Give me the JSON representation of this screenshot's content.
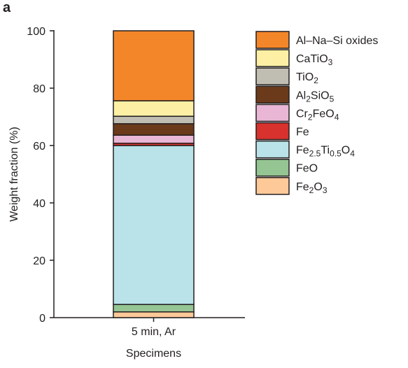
{
  "panel_label": "a",
  "chart_data": {
    "type": "bar",
    "stacked": true,
    "categories": [
      "5 min, Ar"
    ],
    "xlabel": "Specimens",
    "ylabel": "Weight fraction (%)",
    "ylim": [
      0,
      100
    ],
    "yticks": [
      0,
      20,
      40,
      60,
      80,
      100
    ],
    "grid": false,
    "legend_position": "right",
    "series": [
      {
        "name": "Fe2O3",
        "label_parts": [
          [
            "Fe",
            ""
          ],
          [
            "2",
            "sub"
          ],
          [
            "O",
            ""
          ],
          [
            "3",
            "sub"
          ]
        ],
        "color": "#fdc998",
        "values": [
          2.0
        ]
      },
      {
        "name": "FeO",
        "label_parts": [
          [
            "FeO",
            ""
          ]
        ],
        "color": "#94c592",
        "values": [
          2.6
        ]
      },
      {
        "name": "Fe2.5Ti0.5O4",
        "label_parts": [
          [
            "Fe",
            ""
          ],
          [
            "2.5",
            "sub"
          ],
          [
            "Ti",
            ""
          ],
          [
            "0.5",
            "sub"
          ],
          [
            "O",
            ""
          ],
          [
            "4",
            "sub"
          ]
        ],
        "color": "#b9e3e9",
        "values": [
          55.4
        ]
      },
      {
        "name": "Fe",
        "label_parts": [
          [
            "Fe",
            ""
          ]
        ],
        "color": "#d7322e",
        "values": [
          0.8
        ]
      },
      {
        "name": "Cr2FeO4",
        "label_parts": [
          [
            "Cr",
            ""
          ],
          [
            "2",
            "sub"
          ],
          [
            "FeO",
            ""
          ],
          [
            "4",
            "sub"
          ]
        ],
        "color": "#e9b7d5",
        "values": [
          2.8
        ]
      },
      {
        "name": "Al2SiO5",
        "label_parts": [
          [
            "Al",
            ""
          ],
          [
            "2",
            "sub"
          ],
          [
            "SiO",
            ""
          ],
          [
            "5",
            "sub"
          ]
        ],
        "color": "#6b3a1b",
        "values": [
          4.0
        ]
      },
      {
        "name": "TiO2",
        "label_parts": [
          [
            "TiO",
            ""
          ],
          [
            "2",
            "sub"
          ]
        ],
        "color": "#c0bdb2",
        "values": [
          2.6
        ]
      },
      {
        "name": "CaTiO3",
        "label_parts": [
          [
            "CaTiO",
            ""
          ],
          [
            "3",
            "sub"
          ]
        ],
        "color": "#fdf0a4",
        "values": [
          5.4
        ]
      },
      {
        "name": "Al–Na–Si oxides",
        "label_parts": [
          [
            "Al–Na–Si oxides",
            ""
          ]
        ],
        "color": "#f4862a",
        "values": [
          24.4
        ]
      }
    ]
  }
}
